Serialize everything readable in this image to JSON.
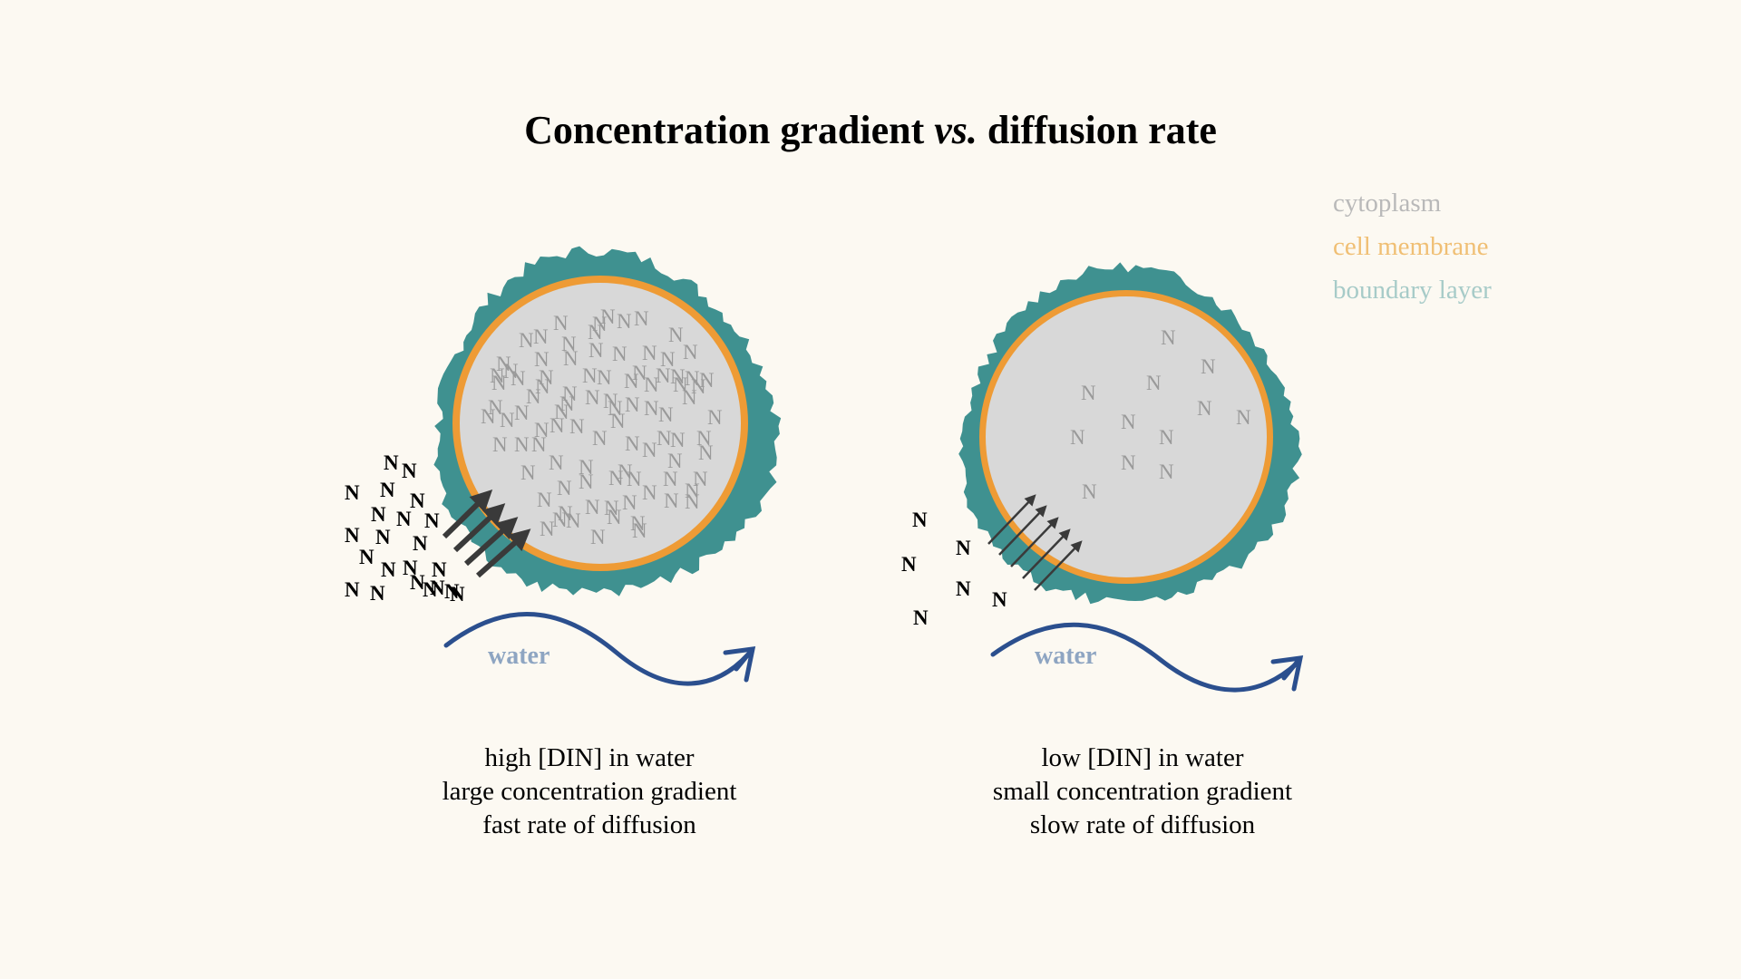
{
  "title": {
    "main": "Concentration gradient ",
    "italic": "vs.",
    "rest": " diffusion rate"
  },
  "legend": [
    {
      "label": "cytoplasm",
      "color": "#b9b9b9"
    },
    {
      "label": "cell membrane",
      "color": "#f0bf74"
    },
    {
      "label": "boundary layer",
      "color": "#a7cbc8"
    }
  ],
  "colors": {
    "background": "#fcf9f2",
    "cytoplasm": "#d8d8d8",
    "membrane": "#ee9b35",
    "boundary_layer": "#3f9190",
    "water_arrow": "#2b4f8e",
    "water_label": "#8ea5c2",
    "diffusion_arrow": "#3a3a3a",
    "inner_n": "#9a9a9a"
  },
  "symbol": "N",
  "panels": [
    {
      "id": "high",
      "water_label": "water",
      "caption": [
        "high [DIN] in water",
        "large concentration gradient",
        "fast rate of diffusion"
      ]
    },
    {
      "id": "low",
      "water_label": "water",
      "caption": [
        "low [DIN] in water",
        "small concentration gradient",
        "slow rate of diffusion"
      ]
    }
  ]
}
